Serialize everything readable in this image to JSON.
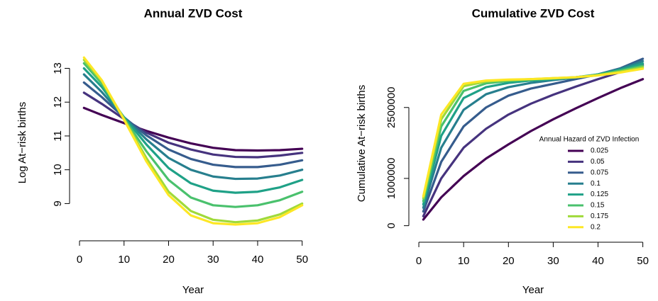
{
  "chart_data": [
    {
      "type": "line",
      "title": "Annual ZVD Cost",
      "xlabel": "Year",
      "ylabel": "Log At−risk births",
      "x": [
        1,
        5,
        10,
        15,
        20,
        25,
        30,
        35,
        40,
        45,
        50
      ],
      "xlim": [
        -0.96,
        51.96
      ],
      "ylim": [
        8.15,
        13.45
      ],
      "xticks": [
        0,
        10,
        20,
        30,
        40,
        50
      ],
      "yticks": [
        9,
        10,
        11,
        12,
        13
      ],
      "series": [
        {
          "color": "#440154",
          "values": [
            11.83,
            11.62,
            11.38,
            11.15,
            10.95,
            10.78,
            10.65,
            10.58,
            10.57,
            10.58,
            10.62
          ]
        },
        {
          "color": "#46337E",
          "values": [
            12.28,
            11.95,
            11.5,
            11.1,
            10.8,
            10.6,
            10.45,
            10.38,
            10.37,
            10.42,
            10.5
          ]
        },
        {
          "color": "#365C8D",
          "values": [
            12.58,
            12.15,
            11.55,
            11.02,
            10.6,
            10.32,
            10.15,
            10.08,
            10.08,
            10.15,
            10.28
          ]
        },
        {
          "color": "#277F8E",
          "values": [
            12.82,
            12.3,
            11.55,
            10.9,
            10.35,
            10.0,
            9.8,
            9.73,
            9.74,
            9.83,
            10.0
          ]
        },
        {
          "color": "#1FA187",
          "values": [
            13.0,
            12.45,
            11.55,
            10.75,
            10.05,
            9.6,
            9.38,
            9.32,
            9.35,
            9.48,
            9.7
          ]
        },
        {
          "color": "#4AC16D",
          "values": [
            13.15,
            12.55,
            11.52,
            10.55,
            9.7,
            9.18,
            8.95,
            8.9,
            8.95,
            9.1,
            9.35
          ]
        },
        {
          "color": "#9FDA3A",
          "values": [
            13.25,
            12.62,
            11.5,
            10.35,
            9.35,
            8.78,
            8.52,
            8.45,
            8.5,
            8.68,
            9.0
          ]
        },
        {
          "color": "#FDE725",
          "values": [
            13.32,
            12.65,
            11.48,
            10.25,
            9.25,
            8.65,
            8.42,
            8.38,
            8.42,
            8.6,
            8.95
          ]
        }
      ]
    },
    {
      "type": "line",
      "title": "Cumulative ZVD Cost",
      "xlabel": "Year",
      "ylabel": "Cumulative At−risk births",
      "x": [
        1,
        5,
        10,
        15,
        20,
        25,
        30,
        35,
        40,
        45,
        50
      ],
      "xlim": [
        -0.96,
        51.96
      ],
      "ylim": [
        -170000,
        3650000
      ],
      "xticks": [
        0,
        10,
        20,
        30,
        40,
        50
      ],
      "yticks": [
        0,
        1000000,
        2500000
      ],
      "legend_title": "Annual Hazard of ZVD Infection",
      "series": [
        {
          "name": "0.025",
          "color": "#440154",
          "values": [
            130000,
            600000,
            1050000,
            1420000,
            1720000,
            2000000,
            2250000,
            2480000,
            2700000,
            2910000,
            3100000
          ]
        },
        {
          "name": "0.05",
          "color": "#46337E",
          "values": [
            200000,
            1000000,
            1650000,
            2050000,
            2350000,
            2580000,
            2770000,
            2940000,
            3100000,
            3250000,
            3400000
          ]
        },
        {
          "name": "0.075",
          "color": "#365C8D",
          "values": [
            300000,
            1350000,
            2100000,
            2500000,
            2750000,
            2900000,
            3000000,
            3100000,
            3200000,
            3330000,
            3530000
          ]
        },
        {
          "name": "0.1",
          "color": "#277F8E",
          "values": [
            380000,
            1650000,
            2450000,
            2780000,
            2930000,
            3020000,
            3080000,
            3130000,
            3200000,
            3320000,
            3480000
          ]
        },
        {
          "name": "0.125",
          "color": "#1FA187",
          "values": [
            450000,
            1900000,
            2700000,
            2930000,
            3020000,
            3070000,
            3100000,
            3140000,
            3200000,
            3300000,
            3430000
          ]
        },
        {
          "name": "0.15",
          "color": "#4AC16D",
          "values": [
            520000,
            2100000,
            2850000,
            3010000,
            3060000,
            3090000,
            3110000,
            3140000,
            3190000,
            3280000,
            3380000
          ]
        },
        {
          "name": "0.175",
          "color": "#9FDA3A",
          "values": [
            580000,
            2250000,
            2950000,
            3050000,
            3080000,
            3100000,
            3120000,
            3140000,
            3180000,
            3260000,
            3350000
          ]
        },
        {
          "name": "0.2",
          "color": "#FDE725",
          "values": [
            620000,
            2350000,
            3000000,
            3070000,
            3090000,
            3100000,
            3120000,
            3140000,
            3180000,
            3240000,
            3320000
          ]
        }
      ]
    }
  ]
}
